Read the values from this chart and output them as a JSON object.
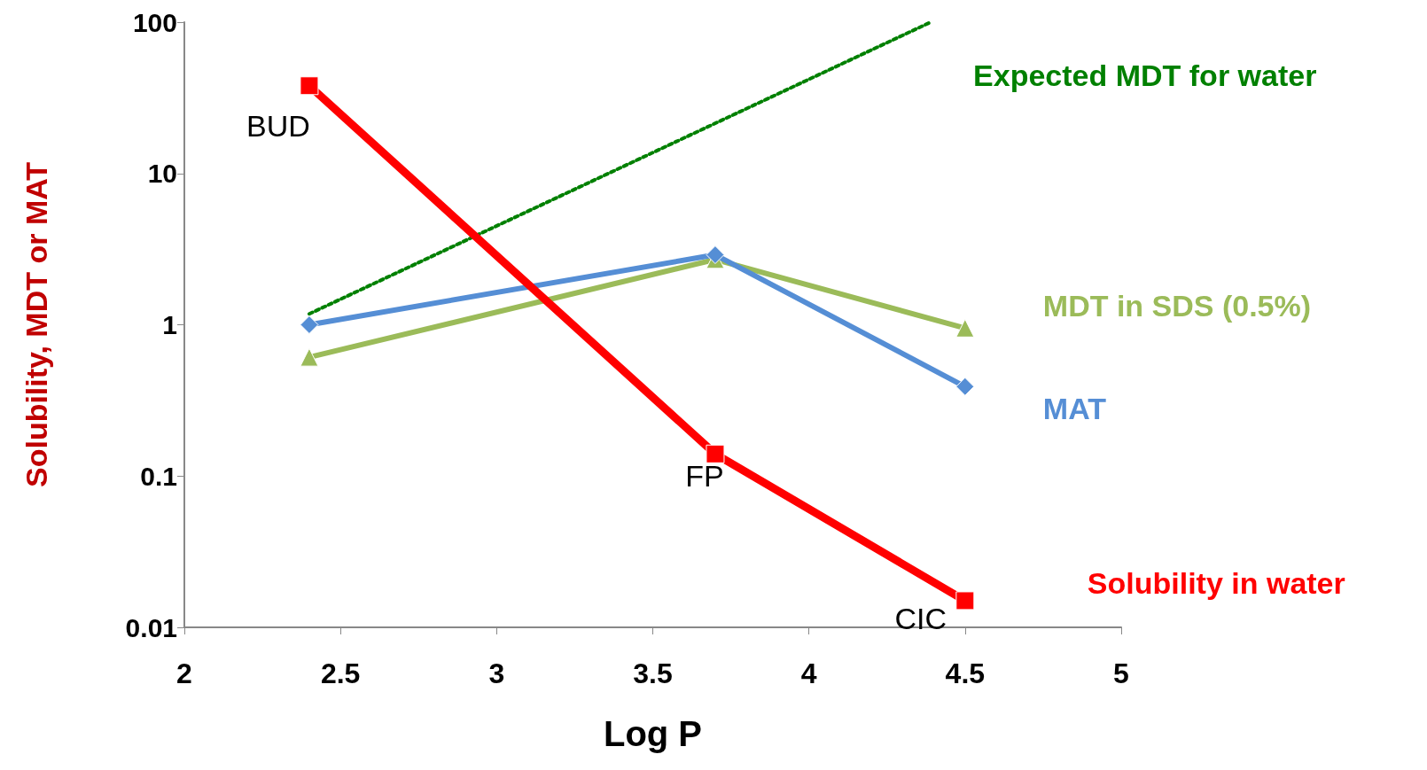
{
  "chart_data": {
    "type": "line",
    "xlabel": "Log P",
    "ylabel": "Solubility, MDT or MAT",
    "xlim": [
      2,
      5
    ],
    "xticks": [
      2,
      2.5,
      3,
      3.5,
      4,
      4.5,
      5
    ],
    "ylim": [
      0.01,
      100
    ],
    "yticks": [
      0.01,
      0.1,
      1,
      10,
      100
    ],
    "log": "y",
    "grid": false,
    "legend": false,
    "x": [
      2.4,
      3.7,
      4.5
    ],
    "series": [
      {
        "name": "Expected MDT for water",
        "color": "#008000",
        "x": [
          2.4,
          4.39
        ],
        "values": [
          1.18,
          100
        ],
        "line_style": "dotted",
        "marker": "none"
      },
      {
        "name": "MDT in SDS (0.5%)",
        "color": "#9bbb59",
        "values": [
          0.61,
          2.7,
          0.95
        ],
        "line_style": "solid",
        "marker": "triangle"
      },
      {
        "name": "MAT",
        "color": "#558ed5",
        "values": [
          1,
          2.9,
          0.39
        ],
        "line_style": "solid",
        "marker": "diamond"
      },
      {
        "name": "Solubility in water",
        "color": "#ff0000",
        "values": [
          38,
          0.14,
          0.015
        ],
        "line_style": "solid",
        "marker": "square"
      }
    ],
    "annotations": [
      {
        "text": "BUD",
        "x": 2.4,
        "y": 38
      },
      {
        "text": "FP",
        "x": 3.7,
        "y": 0.14
      },
      {
        "text": "CIC",
        "x": 4.5,
        "y": 0.015
      }
    ]
  }
}
